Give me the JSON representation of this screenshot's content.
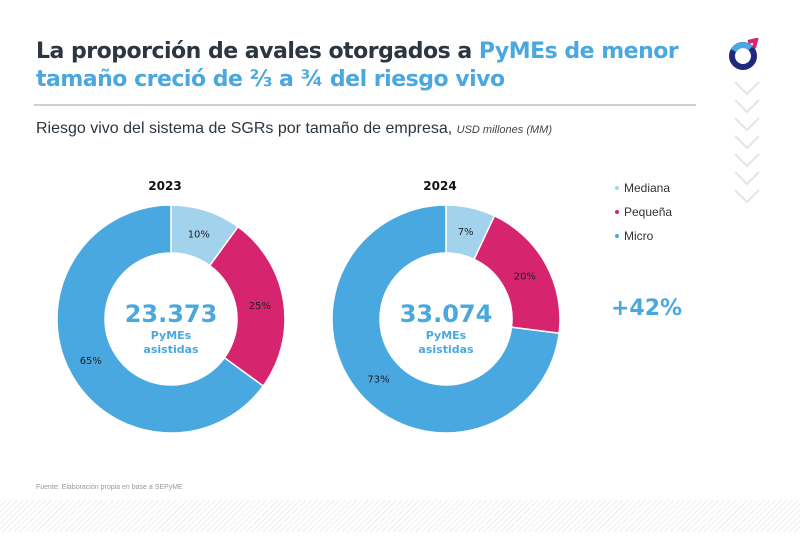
{
  "header": {
    "title_part1": "La proporción de avales otorgados a ",
    "title_highlight1": "PyMEs de menor",
    "title_highlight2": "tamaño creció de ⅔ a ¾ del riesgo vivo",
    "subtitle": "Riesgo vivo del sistema de SGRs por tamaño de empresa, ",
    "subtitle_unit": "USD millones (MM)"
  },
  "logo_icon": "circle-logo-icon",
  "legend": [
    {
      "label": "Mediana",
      "color": "#a3d2ec"
    },
    {
      "label": "Pequeña",
      "color": "#d6246f"
    },
    {
      "label": "Micro",
      "color": "#4aa8e0"
    }
  ],
  "growth": "+42%",
  "source": "Fuente: Elaboración propia en base a SEPyME",
  "chart_data": [
    {
      "type": "pie",
      "title": "2023",
      "donut": true,
      "categories": [
        "Mediana",
        "Pequeña",
        "Micro"
      ],
      "values": [
        10,
        25,
        65
      ],
      "labels": [
        "10%",
        "25%",
        "65%"
      ],
      "colors": [
        "#a3d2ec",
        "#d6246f",
        "#4aa8e0"
      ],
      "center_value": "23.373",
      "center_label1": "PyMEs",
      "center_label2": "asistidas",
      "legend": "right"
    },
    {
      "type": "pie",
      "title": "2024",
      "donut": true,
      "categories": [
        "Mediana",
        "Pequeña",
        "Micro"
      ],
      "values": [
        7,
        20,
        73
      ],
      "labels": [
        "7%",
        "20%",
        "73%"
      ],
      "colors": [
        "#a3d2ec",
        "#d6246f",
        "#4aa8e0"
      ],
      "center_value": "33.074",
      "center_label1": "PyMEs",
      "center_label2": "asistidas",
      "legend": "right"
    }
  ]
}
